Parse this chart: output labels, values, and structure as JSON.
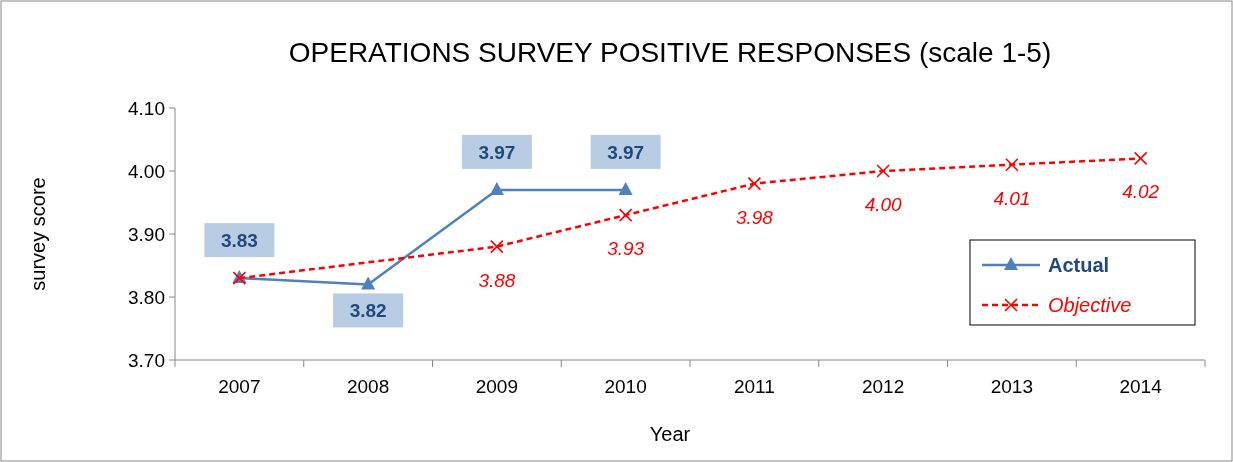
{
  "chart_data": {
    "type": "line",
    "title": "OPERATIONS SURVEY POSITIVE RESPONSES (scale 1-5)",
    "xlabel": "Year",
    "ylabel": "survey score",
    "categories": [
      "2007",
      "2008",
      "2009",
      "2010",
      "2011",
      "2012",
      "2013",
      "2014"
    ],
    "ylim": [
      3.7,
      4.1
    ],
    "yticks": [
      {
        "value": 3.7,
        "label": "3.70"
      },
      {
        "value": 3.8,
        "label": "3.80"
      },
      {
        "value": 3.9,
        "label": "3.90"
      },
      {
        "value": 4.0,
        "label": "4.00"
      },
      {
        "value": 4.1,
        "label": "4.10"
      }
    ],
    "grid": false,
    "legend": "right",
    "series": [
      {
        "name": "Actual",
        "color": "#4f81bd",
        "marker": "triangle",
        "line_style": "solid",
        "values": [
          3.83,
          3.82,
          3.97,
          3.97,
          null,
          null,
          null,
          null
        ],
        "value_labels": [
          "3.83",
          "3.82",
          "3.97",
          "3.97",
          null,
          null,
          null,
          null
        ]
      },
      {
        "name": "Objective",
        "color": "#ff0000",
        "marker": "cross",
        "line_style": "dashed",
        "values": [
          3.83,
          null,
          3.88,
          3.93,
          3.98,
          4.0,
          4.01,
          4.02
        ],
        "value_labels": [
          null,
          null,
          "3.88",
          "3.93",
          "3.98",
          "4.00",
          "4.01",
          "4.02"
        ]
      }
    ]
  }
}
